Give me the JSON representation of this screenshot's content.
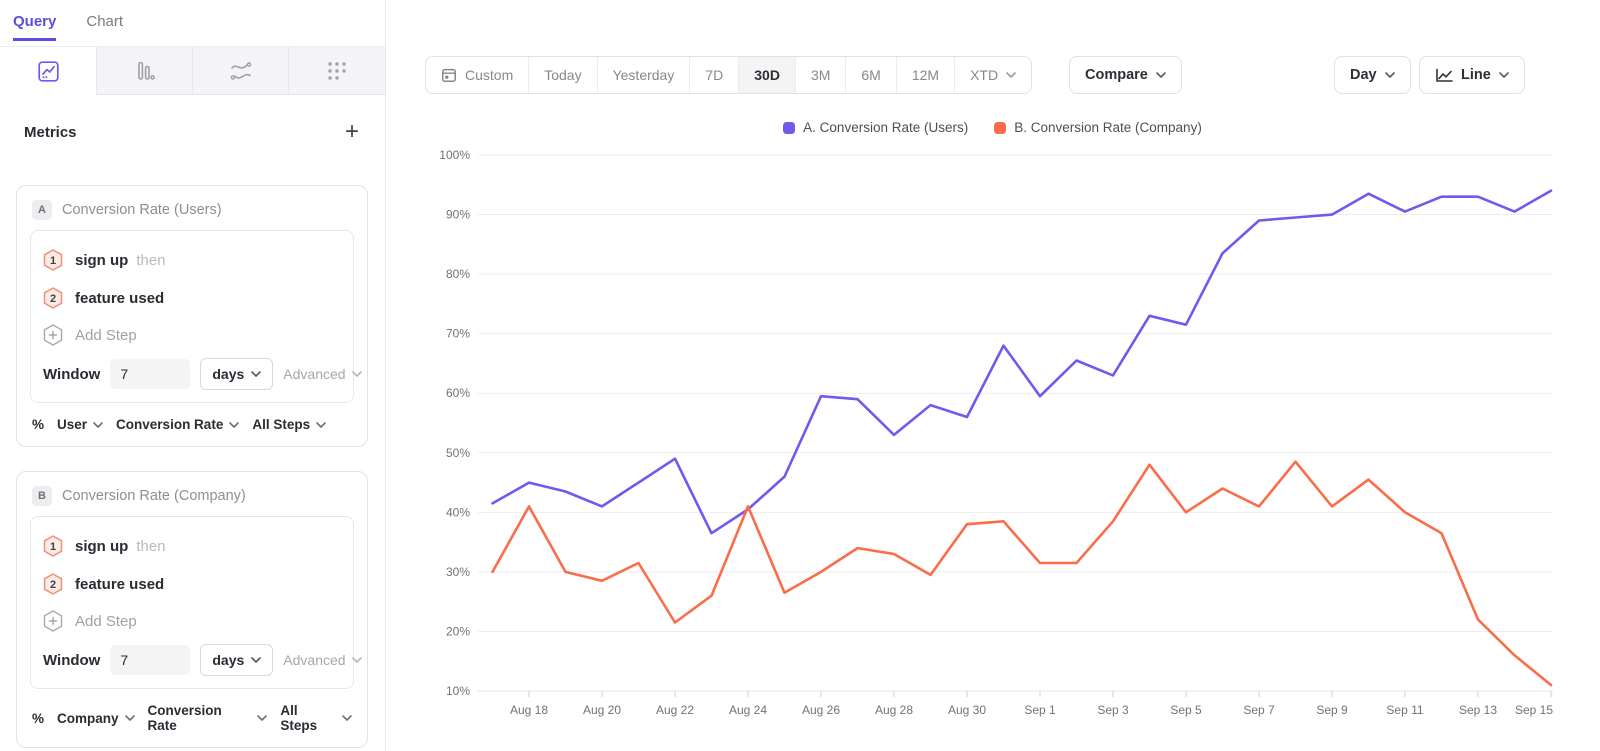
{
  "sidebar": {
    "tabs": [
      {
        "label": "Query",
        "active": true
      },
      {
        "label": "Chart",
        "active": false
      }
    ],
    "chart_type_tabs": [
      {
        "icon": "line-chart-icon",
        "active": true
      },
      {
        "icon": "bar-chart-icon",
        "active": false
      },
      {
        "icon": "flows-icon",
        "active": false
      },
      {
        "icon": "scatter-dots-icon",
        "active": false
      }
    ],
    "metrics_header": {
      "title": "Metrics",
      "add_label": "+"
    },
    "cards": [
      {
        "badge": "A",
        "title": "Conversion Rate (Users)",
        "steps": [
          {
            "num": "1",
            "label": "sign up",
            "suffix": "then"
          },
          {
            "num": "2",
            "label": "feature used",
            "suffix": ""
          }
        ],
        "add_step_label": "Add Step",
        "window": {
          "label": "Window",
          "value": "7",
          "unit": "days",
          "advanced_label": "Advanced"
        },
        "measurement": [
          "%",
          "User",
          "Conversion Rate",
          "All Steps"
        ]
      },
      {
        "badge": "B",
        "title": "Conversion Rate (Company)",
        "steps": [
          {
            "num": "1",
            "label": "sign up",
            "suffix": "then"
          },
          {
            "num": "2",
            "label": "feature used",
            "suffix": ""
          }
        ],
        "add_step_label": "Add Step",
        "window": {
          "label": "Window",
          "value": "7",
          "unit": "days",
          "advanced_label": "Advanced"
        },
        "measurement": [
          "%",
          "Company",
          "Conversion Rate",
          "All Steps"
        ]
      }
    ]
  },
  "toolbar": {
    "date_ranges": [
      {
        "label": "Custom",
        "icon": "calendar",
        "active": false
      },
      {
        "label": "Today",
        "active": false
      },
      {
        "label": "Yesterday",
        "active": false
      },
      {
        "label": "7D",
        "active": false
      },
      {
        "label": "30D",
        "active": true
      },
      {
        "label": "3M",
        "active": false
      },
      {
        "label": "6M",
        "active": false
      },
      {
        "label": "12M",
        "active": false
      },
      {
        "label": "XTD",
        "chevron": true,
        "active": false
      }
    ],
    "compare_label": "Compare",
    "granularity_label": "Day",
    "chart_style_label": "Line"
  },
  "chart_data": {
    "type": "line",
    "title": "",
    "xlabel": "",
    "ylabel": "",
    "ylim": [
      10,
      100
    ],
    "yticks": [
      100,
      90,
      80,
      70,
      60,
      50,
      40,
      30,
      20,
      10
    ],
    "ytick_suffix": "%",
    "grid": true,
    "legend_position": "top",
    "x": [
      "Aug 17",
      "Aug 18",
      "Aug 19",
      "Aug 20",
      "Aug 21",
      "Aug 22",
      "Aug 23",
      "Aug 24",
      "Aug 25",
      "Aug 26",
      "Aug 27",
      "Aug 28",
      "Aug 29",
      "Aug 30",
      "Aug 31",
      "Sep 1",
      "Sep 2",
      "Sep 3",
      "Sep 4",
      "Sep 5",
      "Sep 6",
      "Sep 7",
      "Sep 8",
      "Sep 9",
      "Sep 10",
      "Sep 11",
      "Sep 12",
      "Sep 13",
      "Sep 14",
      "Sep 15"
    ],
    "xtick_indices": [
      1,
      3,
      5,
      7,
      9,
      11,
      13,
      15,
      17,
      19,
      21,
      23,
      25,
      27,
      29
    ],
    "series": [
      {
        "name": "A. Conversion Rate (Users)",
        "color": "#7358F0",
        "values": [
          41.5,
          45,
          43.5,
          41,
          45,
          49,
          36.5,
          40.5,
          46,
          59.5,
          59,
          53,
          58,
          56,
          68,
          59.5,
          65.5,
          63,
          73,
          71.5,
          83.5,
          89,
          89.5,
          90,
          93.5,
          90.5,
          93,
          93,
          90.5,
          94
        ]
      },
      {
        "name": "B. Conversion Rate (Company)",
        "color": "#FB6C4B",
        "values": [
          30,
          41,
          30,
          28.5,
          31.5,
          21.5,
          26,
          41,
          26.5,
          30,
          34,
          33,
          29.5,
          38,
          38.5,
          31.5,
          31.5,
          38.5,
          48,
          40,
          44,
          41,
          48.5,
          41,
          45.5,
          40,
          36.5,
          22,
          16,
          11
        ]
      }
    ]
  }
}
